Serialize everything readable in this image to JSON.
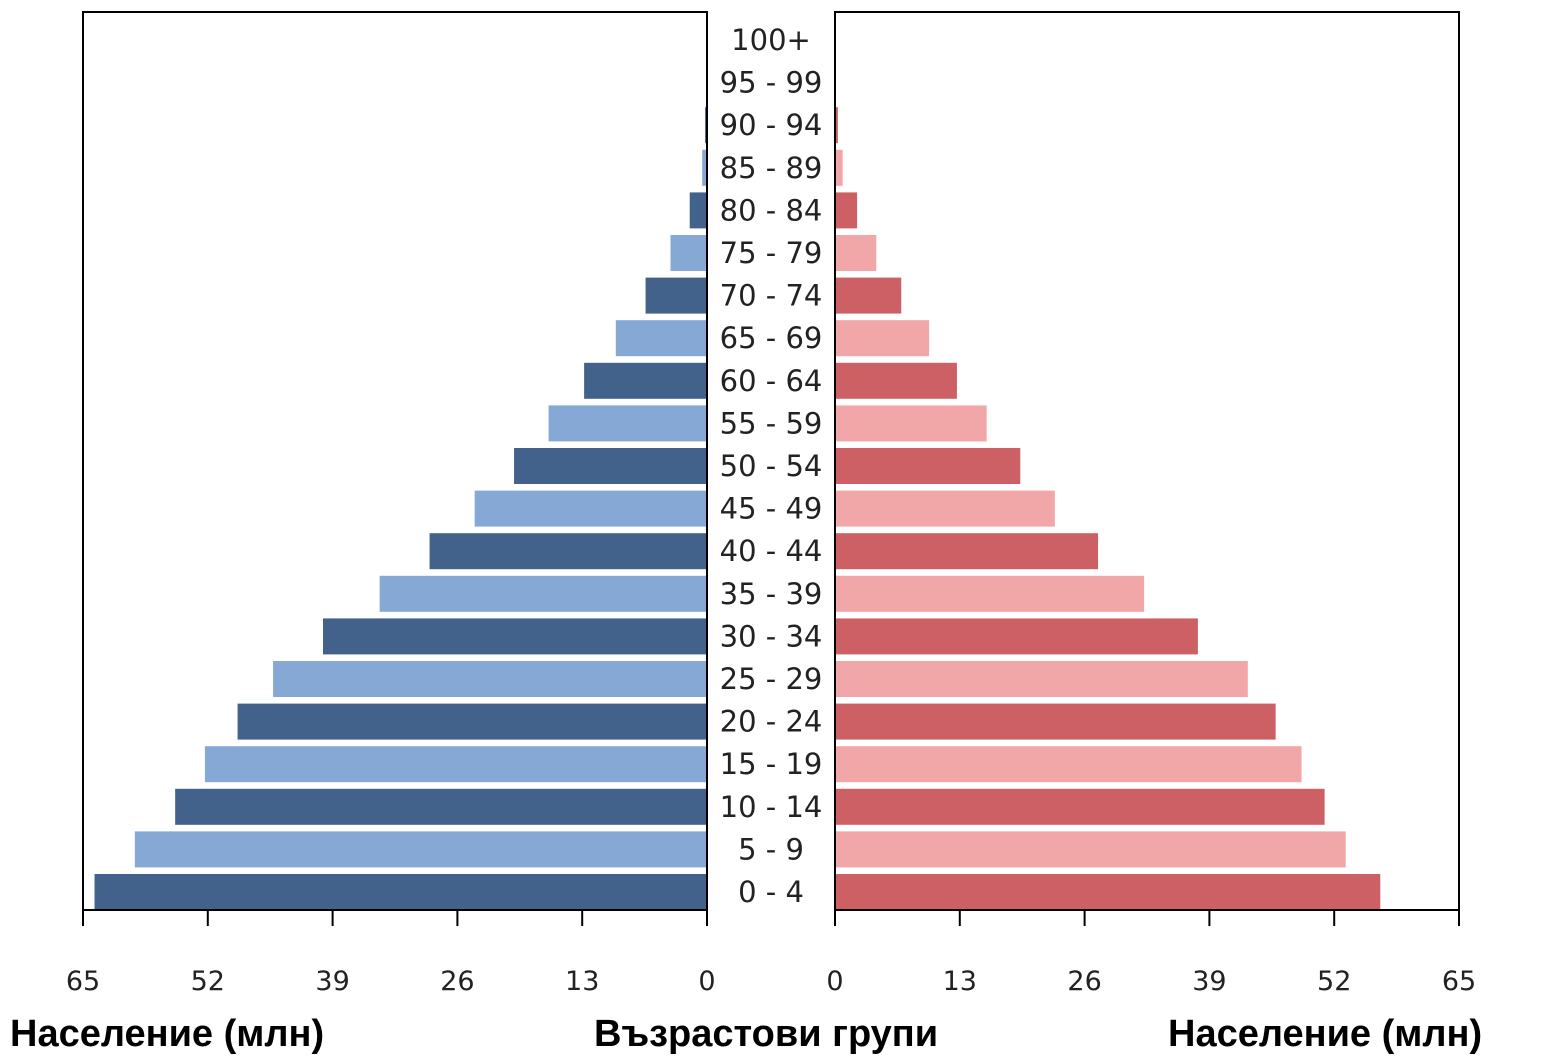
{
  "chart_data": {
    "type": "bar",
    "orientation": "horizontal",
    "layout": "population-pyramid",
    "categories": [
      "0 - 4",
      "5 - 9",
      "10 - 14",
      "15 - 19",
      "20 - 24",
      "25 - 29",
      "30 - 34",
      "35 - 39",
      "40 - 44",
      "45 - 49",
      "50 - 54",
      "55 - 59",
      "60 - 64",
      "65 - 69",
      "70 - 74",
      "75 - 79",
      "80 - 84",
      "85 - 89",
      "90 - 94",
      "95 - 99",
      "100+"
    ],
    "series": [
      {
        "side": "left",
        "values": [
          63.8,
          59.6,
          55.4,
          52.3,
          48.9,
          45.2,
          40.0,
          34.1,
          28.9,
          24.2,
          20.1,
          16.5,
          12.8,
          9.5,
          6.4,
          3.8,
          1.8,
          0.5,
          0.2,
          0.1,
          0.05
        ],
        "colors": {
          "dark": "#42628c",
          "light": "#86a8d4"
        }
      },
      {
        "side": "right",
        "values": [
          56.8,
          53.2,
          51.0,
          48.6,
          45.9,
          43.0,
          37.8,
          32.2,
          27.4,
          22.9,
          19.3,
          15.8,
          12.7,
          9.8,
          6.9,
          4.3,
          2.3,
          0.8,
          0.3,
          0.1,
          0.05
        ],
        "colors": {
          "dark": "#cd6064",
          "light": "#f1a6a8"
        }
      }
    ],
    "xlim": [
      0,
      65
    ],
    "xticks": [
      "0",
      "13",
      "26",
      "39",
      "52",
      "65"
    ],
    "xlabel": "Население (млн)",
    "ylabel": "Възрастови групи",
    "grid": false,
    "legend": "none"
  }
}
